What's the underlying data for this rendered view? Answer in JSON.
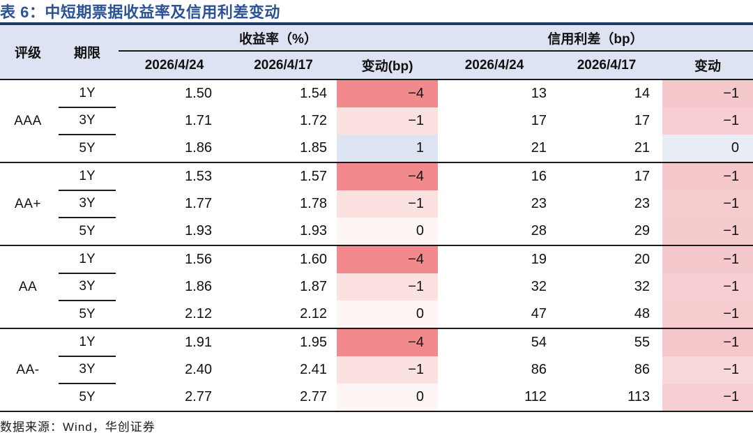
{
  "title": "表 6：中短期票据收益率及信用利差变动",
  "colors": {
    "title_blue": "#2B5197",
    "navy_rule": "#1F3864",
    "header_bg": "#DDE3F2",
    "row_line": "#1a1a1a",
    "change_negative_strong": "#F1898D",
    "change_negative_light": "#FBE2E1",
    "change_zero_faint": "#FDF6F5",
    "change_positive_blue": "#DCE5F1",
    "spread_negative_pink": "#F5C9CC",
    "spread_zero_blue": "#E9EDF6"
  },
  "table": {
    "header": {
      "rating": "评级",
      "term": "期限",
      "yield_group": "收益率（%）",
      "spread_group": "信用利差（bp）",
      "yield_date_1": "2026/4/24",
      "yield_date_2": "2026/4/17",
      "yield_change": "变动(bp)",
      "spread_date_1": "2026/4/24",
      "spread_date_2": "2026/4/17",
      "spread_change": "变动"
    },
    "groups": [
      {
        "rating": "AAA",
        "rows": [
          {
            "term": "1Y",
            "y1": "1.50",
            "y2": "1.54",
            "yc": "−4",
            "yc_bg": "#F1898D",
            "s1": "13",
            "s2": "14",
            "sc": "−1",
            "sc_bg": "#F5C8CB"
          },
          {
            "term": "3Y",
            "y1": "1.71",
            "y2": "1.72",
            "yc": "−1",
            "yc_bg": "#FBE2E1",
            "s1": "17",
            "s2": "17",
            "sc": "−1",
            "sc_bg": "#F7CED1"
          },
          {
            "term": "5Y",
            "y1": "1.86",
            "y2": "1.85",
            "yc": "1",
            "yc_bg": "#DCE5F1",
            "s1": "21",
            "s2": "21",
            "sc": "0",
            "sc_bg": "#E9EDF6"
          }
        ]
      },
      {
        "rating": "AA+",
        "rows": [
          {
            "term": "1Y",
            "y1": "1.53",
            "y2": "1.57",
            "yc": "−4",
            "yc_bg": "#F1898D",
            "s1": "16",
            "s2": "17",
            "sc": "−1",
            "sc_bg": "#F5C8CB"
          },
          {
            "term": "3Y",
            "y1": "1.77",
            "y2": "1.78",
            "yc": "−1",
            "yc_bg": "#FBE2E1",
            "s1": "23",
            "s2": "23",
            "sc": "−1",
            "sc_bg": "#F6CCCF"
          },
          {
            "term": "5Y",
            "y1": "1.93",
            "y2": "1.93",
            "yc": "0",
            "yc_bg": "#FDF6F5",
            "s1": "28",
            "s2": "29",
            "sc": "−1",
            "sc_bg": "#F6CBCE"
          }
        ]
      },
      {
        "rating": "AA",
        "rows": [
          {
            "term": "1Y",
            "y1": "1.56",
            "y2": "1.60",
            "yc": "−4",
            "yc_bg": "#F1898D",
            "s1": "19",
            "s2": "20",
            "sc": "−1",
            "sc_bg": "#F5C8CB"
          },
          {
            "term": "3Y",
            "y1": "1.86",
            "y2": "1.87",
            "yc": "−1",
            "yc_bg": "#FBE2E1",
            "s1": "32",
            "s2": "32",
            "sc": "−1",
            "sc_bg": "#F7CED1"
          },
          {
            "term": "5Y",
            "y1": "2.12",
            "y2": "2.12",
            "yc": "0",
            "yc_bg": "#FDF6F5",
            "s1": "47",
            "s2": "48",
            "sc": "−1",
            "sc_bg": "#F6CCCF"
          }
        ]
      },
      {
        "rating": "AA-",
        "rows": [
          {
            "term": "1Y",
            "y1": "1.91",
            "y2": "1.95",
            "yc": "−4",
            "yc_bg": "#F1898D",
            "s1": "54",
            "s2": "55",
            "sc": "−1",
            "sc_bg": "#F5C7CA"
          },
          {
            "term": "3Y",
            "y1": "2.40",
            "y2": "2.41",
            "yc": "−1",
            "yc_bg": "#FBE2E1",
            "s1": "86",
            "s2": "86",
            "sc": "−1",
            "sc_bg": "#F9D8D9"
          },
          {
            "term": "5Y",
            "y1": "2.77",
            "y2": "2.77",
            "yc": "0",
            "yc_bg": "#FDF6F5",
            "s1": "112",
            "s2": "113",
            "sc": "−1",
            "sc_bg": "#F7CFD2"
          }
        ]
      }
    ]
  },
  "footer": {
    "source": "数据来源：Wind，华创证券"
  }
}
